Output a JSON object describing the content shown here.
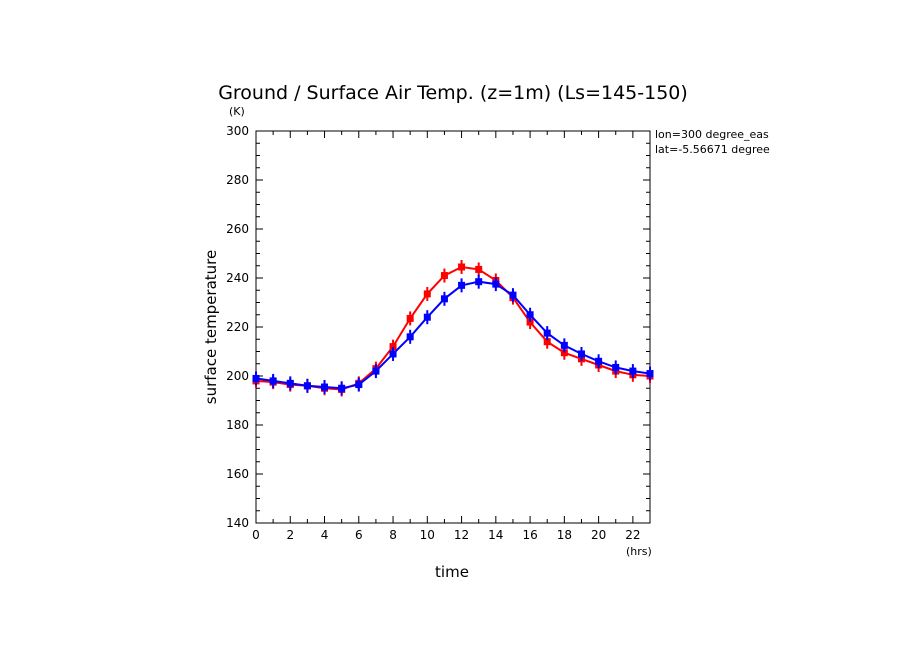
{
  "chart_data": {
    "type": "line",
    "title": "Ground / Surface Air Temp. (z=1m) (Ls=145-150)",
    "xlabel": "time",
    "ylabel": "surface temperature",
    "x_unit": "(hrs)",
    "y_unit": "(K)",
    "xlim": [
      0,
      23
    ],
    "ylim": [
      140,
      300
    ],
    "xticks": [
      0,
      2,
      4,
      6,
      8,
      10,
      12,
      14,
      16,
      18,
      20,
      22
    ],
    "yticks": [
      140,
      160,
      180,
      200,
      220,
      240,
      260,
      280,
      300
    ],
    "annotations": [
      "lon=300 degree_eas",
      "lat=-5.56671 degree"
    ],
    "grid": false,
    "x": [
      0,
      1,
      2,
      3,
      4,
      5,
      6,
      7,
      8,
      9,
      10,
      11,
      12,
      13,
      14,
      15,
      16,
      17,
      18,
      19,
      20,
      21,
      22,
      23
    ],
    "series": [
      {
        "color": "#ff0000",
        "values": [
          198,
          197.5,
          196.5,
          196,
          195,
          194.5,
          197,
          203,
          212,
          223.5,
          233.5,
          241,
          244.5,
          243.5,
          239,
          232,
          222,
          214,
          209.5,
          207,
          204.5,
          202,
          200.5,
          200
        ]
      },
      {
        "color": "#0000ff",
        "values": [
          199,
          198,
          197,
          196,
          195.5,
          195,
          196.5,
          202,
          209,
          216,
          224,
          231.5,
          237,
          238.5,
          237.5,
          233,
          225,
          217.5,
          212.5,
          209,
          206,
          203.5,
          202,
          201
        ]
      }
    ]
  }
}
